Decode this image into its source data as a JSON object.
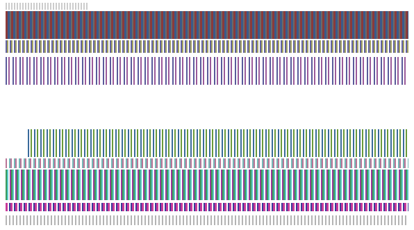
{
  "note_visible_text": "",
  "header": {
    "title": ""
  },
  "table": {
    "caption": ""
  },
  "colors": {
    "header_band": "#8b3a3a",
    "accent_band": "#3a9a5a"
  }
}
